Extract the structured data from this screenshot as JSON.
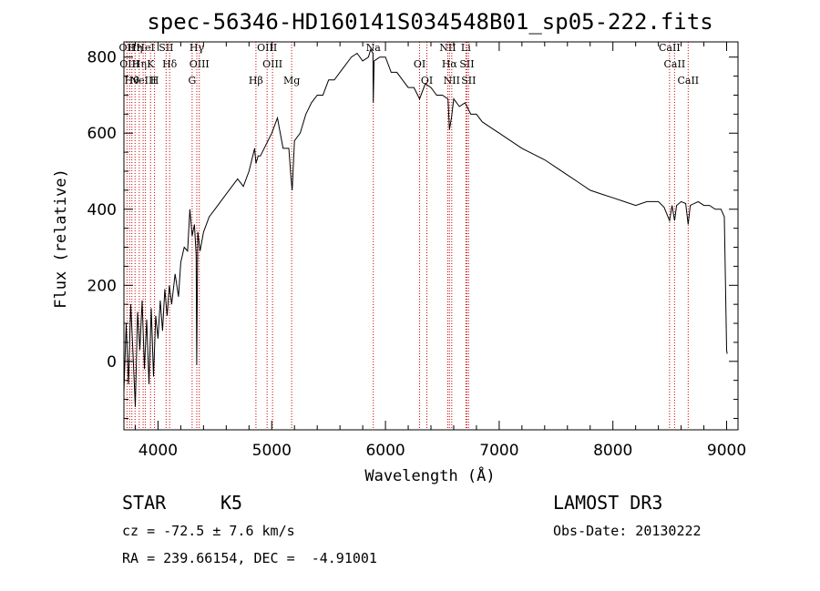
{
  "chart_data": {
    "type": "line",
    "title": "spec-56346-HD160141S034548B01_sp05-222.fits",
    "xlabel": "Wavelength (Å)",
    "ylabel": "Flux (relative)",
    "xlim": [
      3700,
      9100
    ],
    "ylim": [
      -180,
      840
    ],
    "xticks": [
      4000,
      5000,
      6000,
      7000,
      8000,
      9000
    ],
    "yticks": [
      0,
      200,
      400,
      600,
      800
    ],
    "series": [
      {
        "name": "spectrum",
        "x": [
          3700,
          3720,
          3740,
          3760,
          3780,
          3800,
          3820,
          3840,
          3860,
          3880,
          3900,
          3920,
          3940,
          3960,
          3980,
          4000,
          4020,
          4040,
          4060,
          4080,
          4100,
          4120,
          4150,
          4180,
          4200,
          4230,
          4260,
          4280,
          4300,
          4320,
          4335,
          4340,
          4350,
          4370,
          4400,
          4450,
          4500,
          4550,
          4600,
          4650,
          4700,
          4750,
          4800,
          4850,
          4861,
          4880,
          4900,
          4950,
          5000,
          5050,
          5100,
          5150,
          5170,
          5180,
          5200,
          5250,
          5300,
          5350,
          5400,
          5450,
          5500,
          5550,
          5600,
          5650,
          5700,
          5750,
          5800,
          5850,
          5870,
          5890,
          5893,
          5900,
          5950,
          6000,
          6050,
          6100,
          6150,
          6200,
          6250,
          6300,
          6350,
          6400,
          6450,
          6500,
          6550,
          6563,
          6580,
          6600,
          6650,
          6700,
          6750,
          6800,
          6850,
          6900,
          7000,
          7100,
          7200,
          7300,
          7400,
          7500,
          7600,
          7700,
          7800,
          7900,
          8000,
          8100,
          8200,
          8300,
          8400,
          8450,
          8498,
          8520,
          8542,
          8560,
          8600,
          8640,
          8662,
          8680,
          8750,
          8800,
          8850,
          8900,
          8950,
          8980,
          9000,
          9005
        ],
        "y": [
          -80,
          100,
          -60,
          150,
          20,
          -120,
          130,
          30,
          160,
          -20,
          110,
          -60,
          140,
          -40,
          120,
          60,
          160,
          80,
          190,
          120,
          200,
          150,
          230,
          170,
          260,
          300,
          290,
          400,
          330,
          360,
          280,
          -10,
          340,
          290,
          340,
          380,
          400,
          420,
          440,
          460,
          480,
          460,
          500,
          560,
          520,
          540,
          540,
          570,
          600,
          640,
          560,
          560,
          480,
          450,
          580,
          600,
          650,
          680,
          700,
          700,
          740,
          740,
          760,
          780,
          800,
          810,
          790,
          800,
          820,
          810,
          680,
          790,
          800,
          800,
          760,
          760,
          740,
          720,
          720,
          690,
          730,
          720,
          700,
          700,
          690,
          610,
          640,
          690,
          670,
          680,
          650,
          650,
          630,
          620,
          600,
          580,
          560,
          545,
          530,
          510,
          490,
          470,
          450,
          440,
          430,
          420,
          410,
          420,
          420,
          405,
          370,
          410,
          370,
          410,
          420,
          415,
          360,
          410,
          420,
          410,
          410,
          400,
          400,
          380,
          30,
          20
        ]
      }
    ],
    "line_markers": [
      {
        "x": 3727,
        "labels": [
          "OII"
        ]
      },
      {
        "x": 3750,
        "labels": [
          "OIII"
        ]
      },
      {
        "x": 3770,
        "labels": [
          "Hθ"
        ]
      },
      {
        "x": 3798,
        "labels": [
          "Hη"
        ]
      },
      {
        "x": 3835,
        "labels": [
          "Hη"
        ]
      },
      {
        "x": 3869,
        "labels": [
          "NeIII"
        ]
      },
      {
        "x": 3889,
        "labels": [
          "HeI"
        ]
      },
      {
        "x": 3934,
        "labels": [
          "K"
        ]
      },
      {
        "x": 3969,
        "labels": [
          "H"
        ]
      },
      {
        "x": 4071,
        "labels": [
          "SII"
        ]
      },
      {
        "x": 4102,
        "labels": [
          "Hδ"
        ]
      },
      {
        "x": 4300,
        "labels": [
          "G"
        ]
      },
      {
        "x": 4341,
        "labels": [
          "Hγ"
        ]
      },
      {
        "x": 4363,
        "labels": [
          "OIII"
        ]
      },
      {
        "x": 4861,
        "labels": [
          "Hβ"
        ]
      },
      {
        "x": 4959,
        "labels": [
          "OIII"
        ]
      },
      {
        "x": 5007,
        "labels": [
          "OIII"
        ]
      },
      {
        "x": 5175,
        "labels": [
          "Mg"
        ]
      },
      {
        "x": 5893,
        "labels": [
          "Na"
        ]
      },
      {
        "x": 6300,
        "labels": [
          "OI"
        ]
      },
      {
        "x": 6364,
        "labels": [
          "OI"
        ]
      },
      {
        "x": 6548,
        "labels": [
          "NII"
        ]
      },
      {
        "x": 6563,
        "labels": [
          "Hα"
        ]
      },
      {
        "x": 6583,
        "labels": [
          "NII"
        ]
      },
      {
        "x": 6707,
        "labels": [
          "Li"
        ]
      },
      {
        "x": 6716,
        "labels": [
          "SII"
        ]
      },
      {
        "x": 6731,
        "labels": [
          "SII"
        ]
      },
      {
        "x": 8498,
        "labels": [
          "CaII"
        ]
      },
      {
        "x": 8542,
        "labels": [
          "CaII"
        ]
      },
      {
        "x": 8662,
        "labels": [
          "CaII"
        ]
      }
    ],
    "marker_color": "#cc0000",
    "line_color": "#000000"
  },
  "info": {
    "class": "STAR",
    "subclass": "K5",
    "survey": "LAMOST DR3",
    "cz": "cz = -72.5 ± 7.6 km/s",
    "obs_date": "Obs-Date: 20130222",
    "coords": "RA = 239.66154, DEC =  -4.91001"
  }
}
